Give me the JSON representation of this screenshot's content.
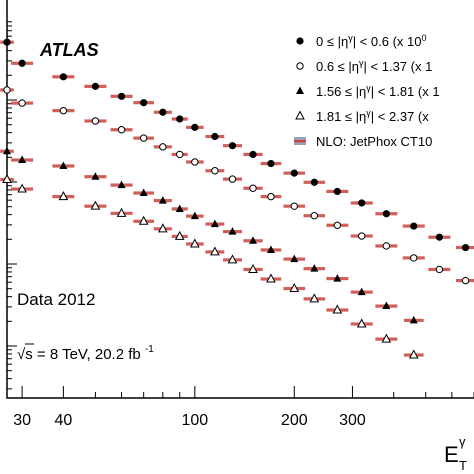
{
  "labels": {
    "experiment": "ATLAS",
    "data_year": "Data 2012",
    "energy_lumi": "√s = 8 TeV, 20.2 fb",
    "lumi_exponent": "-1",
    "xlabel_main": "E",
    "xlabel_sup": "γ",
    "xlabel_sub": "T"
  },
  "legend": [
    {
      "marker": "filled-circle",
      "text": "0 ≤ |η",
      "sup": "γ",
      "tail": "| < 0.6 (x 10",
      "tail_sup": "0"
    },
    {
      "marker": "open-circle",
      "text": "0.6 ≤ |η",
      "sup": "γ",
      "tail": "| < 1.37 (x 1",
      "tail_sup": ""
    },
    {
      "marker": "filled-triangle",
      "text": "1.56 ≤ |η",
      "sup": "γ",
      "tail": "| < 1.81 (x 1",
      "tail_sup": ""
    },
    {
      "marker": "open-triangle",
      "text": "1.81 ≤ |η",
      "sup": "γ",
      "tail": "| < 2.37 (x",
      "tail_sup": ""
    },
    {
      "marker": "band",
      "text": "NLO: JetPhox CT10",
      "sup": "",
      "tail": "",
      "tail_sup": ""
    }
  ],
  "colors": {
    "theory_band": "#c8433c",
    "axis": "#000000"
  },
  "chart_data": {
    "type": "scatter",
    "xscale": "log",
    "xlim": [
      27,
      700
    ],
    "ylim": [
      0,
      1
    ],
    "xticks": [
      30,
      40,
      100,
      200,
      300
    ],
    "xtick_labels": [
      "30",
      "40",
      "100",
      "200",
      "300"
    ],
    "yaxis": "log scale, no tick labels visible",
    "series": [
      {
        "name": "0 ≤ |ηγ| < 0.6",
        "marker": "filled-circle",
        "x": [
          27,
          30,
          40,
          50,
          60,
          70,
          80,
          90,
          100,
          115,
          130,
          150,
          170,
          200,
          230,
          270,
          320,
          380,
          460,
          550,
          660
        ],
        "y": [
          0.894,
          0.841,
          0.807,
          0.783,
          0.758,
          0.742,
          0.718,
          0.701,
          0.68,
          0.657,
          0.634,
          0.612,
          0.589,
          0.565,
          0.542,
          0.519,
          0.49,
          0.463,
          0.432,
          0.404,
          0.378
        ]
      },
      {
        "name": "0.6 ≤ |ηγ| < 1.37",
        "marker": "open-circle",
        "x": [
          27,
          30,
          40,
          50,
          60,
          70,
          80,
          90,
          100,
          115,
          130,
          150,
          170,
          200,
          230,
          270,
          320,
          380,
          460,
          550,
          660
        ],
        "y": [
          0.774,
          0.741,
          0.722,
          0.696,
          0.674,
          0.653,
          0.631,
          0.612,
          0.593,
          0.571,
          0.55,
          0.527,
          0.506,
          0.482,
          0.458,
          0.434,
          0.407,
          0.382,
          0.352,
          0.323,
          0.295
        ]
      },
      {
        "name": "1.56 ≤ |ηγ| < 1.81",
        "marker": "filled-triangle",
        "x": [
          27,
          30,
          40,
          50,
          60,
          70,
          80,
          90,
          100,
          115,
          130,
          150,
          170,
          200,
          230,
          270,
          320,
          380,
          460
        ],
        "y": [
          0.62,
          0.598,
          0.583,
          0.556,
          0.535,
          0.515,
          0.496,
          0.475,
          0.457,
          0.437,
          0.418,
          0.395,
          0.372,
          0.349,
          0.325,
          0.3,
          0.266,
          0.231,
          0.195
        ]
      },
      {
        "name": "1.81 ≤ |ηγ| < 2.37",
        "marker": "open-triangle",
        "x": [
          27,
          30,
          40,
          50,
          60,
          70,
          80,
          90,
          100,
          115,
          130,
          150,
          170,
          200,
          230,
          270,
          320,
          380,
          460
        ],
        "y": [
          0.549,
          0.525,
          0.506,
          0.482,
          0.464,
          0.444,
          0.425,
          0.406,
          0.387,
          0.367,
          0.347,
          0.323,
          0.299,
          0.275,
          0.249,
          0.221,
          0.186,
          0.148,
          0.108
        ]
      }
    ]
  }
}
